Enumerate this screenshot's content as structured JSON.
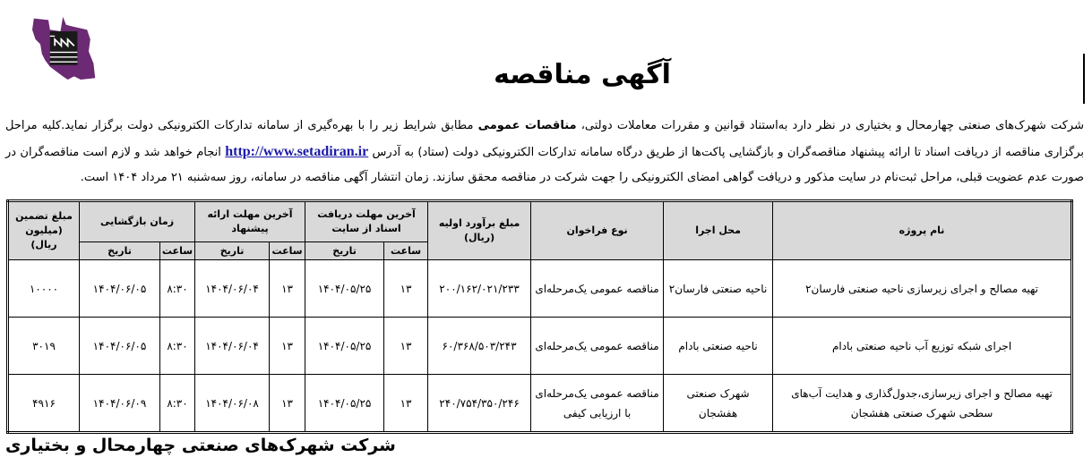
{
  "header": {
    "title": "آگهی مناقصه",
    "logo_colors": {
      "map": "#6b2a73",
      "factory": "#1a1a1a"
    }
  },
  "intro": {
    "part1": "شرکت شهرک‌های صنعتی چهارمحال و بختیاری در نظر دارد به‌استناد قوانین و مقررات معاملات دولتی، ",
    "bold": "مناقصات عمومی",
    "part2": " مطابق شرایط زیر را با بهره‌گیری از سامانه تدارکات الکترونیکی دولت برگزار نماید.کلیه مراحل برگزاری مناقصه از دریافت اسناد تا ارائه پیشنهاد مناقصه‌گران و بازگشایی پاکت‌ها از طریق درگاه سامانه تدارکات الکترونیکی دولت (ستاد) به آدرس ",
    "link": "http://www.setadiran.ir",
    "part3": " انجام خواهد شد و لازم است مناقصه‌گران در صورت عدم عضویت قبلی، مراحل ثبت‌نام در سایت مذکور و دریافت گواهی امضای الکترونیکی را جهت شرکت در مناقصه محقق سازند. زمان انتشار آگهی مناقصه در سامانه، روز سه‌شنبه ۲۱ مرداد ۱۴۰۴  است."
  },
  "table": {
    "headers": {
      "project": "نام پروژه",
      "location": "محل اجرا",
      "type": "نوع فراخوان",
      "estimate": "مبلغ برآورد اولیه (ریال)",
      "docs": "آخرین مهلت دریافت اسناد از سایت",
      "offer": "آخرین مهلت  ارائه پیشنهاد",
      "opening": "زمان بازگشایی",
      "guarantee": "مبلغ تضمین (میلیون ریال)",
      "hour": "ساعت",
      "date": "تاریخ"
    },
    "rows": [
      {
        "project": "تهیه مصالح و اجرای زیرسازی ناحیه صنعتی فارسان۲",
        "location": "ناحیه صنعتی فارسان۲",
        "type": "مناقصه عمومی یک‌مرحله‌ای",
        "estimate": "۲۰۰/۱۶۲/۰۲۱/۲۳۳",
        "docs_hour": "۱۳",
        "docs_date": "۱۴۰۴/۰۵/۲۵",
        "offer_hour": "۱۳",
        "offer_date": "۱۴۰۴/۰۶/۰۴",
        "open_hour": "۸:۳۰",
        "open_date": "۱۴۰۴/۰۶/۰۵",
        "guarantee": "۱۰۰۰۰"
      },
      {
        "project": "اجرای شبکه توزیع آب ناحیه صنعتی بادام",
        "location": "ناحیه صنعتی بادام",
        "type": "مناقصه عمومی یک‌مرحله‌ای",
        "estimate": "۶۰/۳۶۸/۵۰۳/۲۴۳",
        "docs_hour": "۱۳",
        "docs_date": "۱۴۰۴/۰۵/۲۵",
        "offer_hour": "۱۳",
        "offer_date": "۱۴۰۴/۰۶/۰۴",
        "open_hour": "۸:۳۰",
        "open_date": "۱۴۰۴/۰۶/۰۵",
        "guarantee": "۳۰۱۹"
      },
      {
        "project": "تهیه مصالح و اجرای زیرسازی،جدول‌گذاری و هدایت آب‌های سطحی شهرک صنعتی هفشجان",
        "location": "شهرک صنعتی هفشجان",
        "type": "مناقصه عمومی یک‌مرحله‌ای با ارزیابی کیفی",
        "estimate": "۲۴۰/۷۵۴/۳۵۰/۲۴۶",
        "docs_hour": "۱۳",
        "docs_date": "۱۴۰۴/۰۵/۲۵",
        "offer_hour": "۱۳",
        "offer_date": "۱۴۰۴/۰۶/۰۸",
        "open_hour": "۸:۳۰",
        "open_date": "۱۴۰۴/۰۶/۰۹",
        "guarantee": "۴۹۱۶"
      }
    ]
  },
  "footer": {
    "company": "شرکت شهرک‌های صنعتی چهارمحال و بختیاری"
  }
}
